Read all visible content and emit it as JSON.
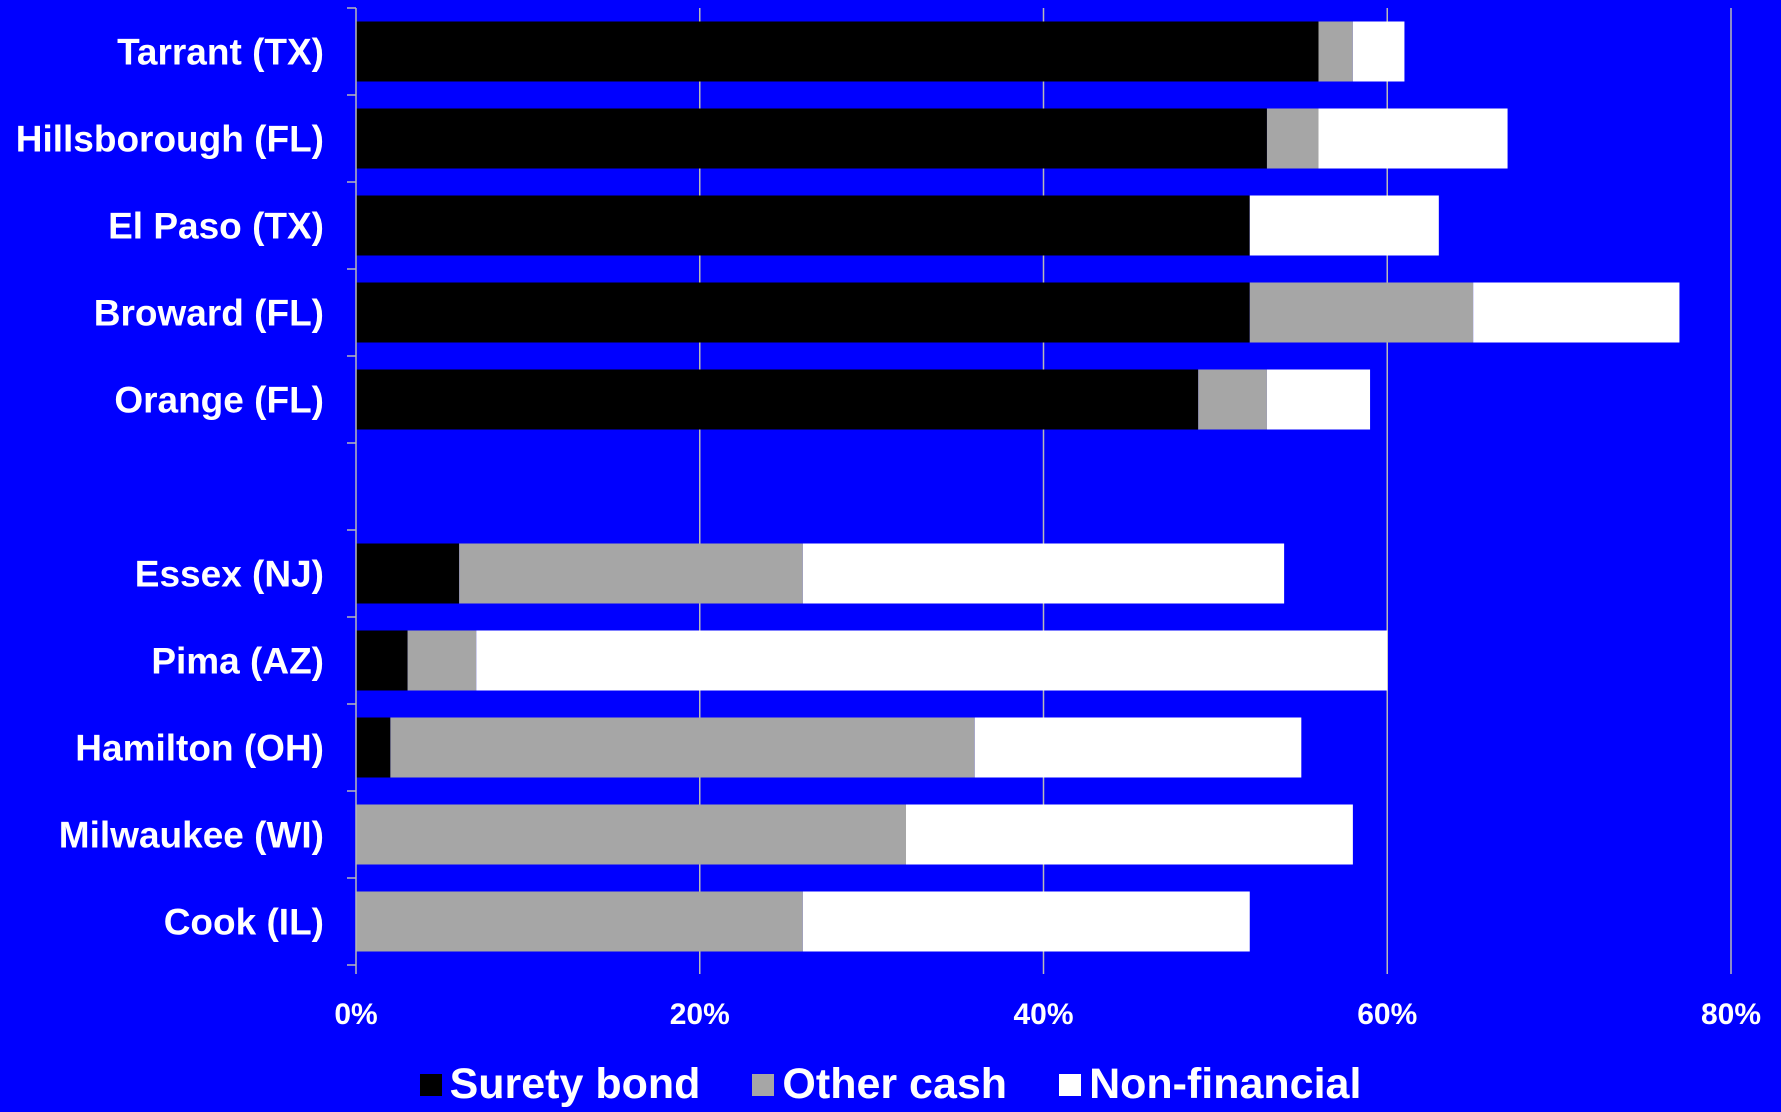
{
  "chart_data": {
    "type": "bar",
    "orientation": "horizontal",
    "stacked": true,
    "categories": [
      "Tarrant (TX)",
      "Hillsborough (FL)",
      "El Paso (TX)",
      "Broward (FL)",
      "Orange (FL)",
      "",
      "Essex (NJ)",
      "Pima (AZ)",
      "Hamilton (OH)",
      "Milwaukee (WI)",
      "Cook (IL)"
    ],
    "series": [
      {
        "name": "Surety bond",
        "color": "#000000",
        "values": [
          56,
          53,
          52,
          52,
          49,
          null,
          6,
          3,
          2,
          0,
          0
        ]
      },
      {
        "name": "Other cash",
        "color": "#A6A6A6",
        "values": [
          2,
          3,
          0,
          13,
          4,
          null,
          20,
          4,
          34,
          32,
          26
        ]
      },
      {
        "name": "Non-financial",
        "color": "#FFFFFF",
        "values": [
          3,
          11,
          11,
          12,
          6,
          null,
          28,
          53,
          19,
          26,
          26
        ]
      }
    ],
    "xlim": [
      0,
      80
    ],
    "xticks": [
      "0%",
      "20%",
      "40%",
      "60%",
      "80%"
    ],
    "grid": true,
    "legend_position": "bottom",
    "background": "#0000FF"
  }
}
